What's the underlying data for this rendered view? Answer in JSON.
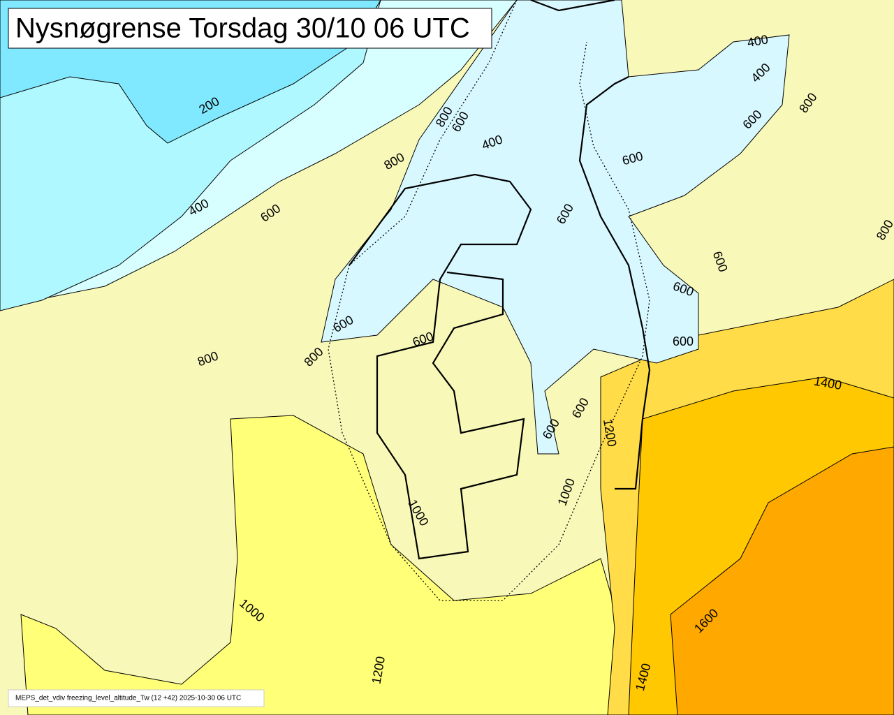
{
  "title": "Nysnøgrense Torsdag 30/10 06 UTC",
  "footer": "MEPS_det_vdiv freezing_level_altitude_Tw (12 +42) 2025-10-30 06 UTC",
  "contour_labels": [
    "400",
    "400",
    "200",
    "800",
    "800",
    "600",
    "600",
    "400",
    "800",
    "600",
    "400",
    "600",
    "600",
    "800",
    "600",
    "600",
    "600",
    "600",
    "600",
    "800",
    "800",
    "1400",
    "600",
    "1200",
    "600",
    "1000",
    "1000",
    "1000",
    "1600",
    "1200",
    "1400"
  ]
}
